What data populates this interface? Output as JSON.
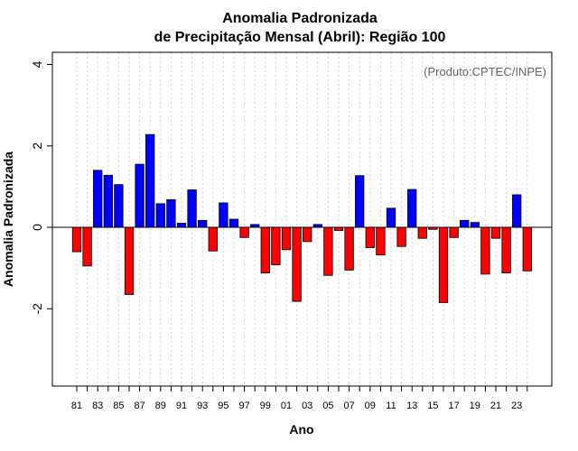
{
  "chart_data": {
    "type": "bar",
    "title_line1": "Anomalia Padronizada",
    "title_line2": "de Precipitação Mensal (Abril): Região 100",
    "watermark": "(Produto:CPTEC/INPE)",
    "xlabel": "Ano",
    "ylabel": "Anomalia Padronizada",
    "ylim": [
      -3.9,
      4.3
    ],
    "yticks": [
      -2,
      0,
      2,
      4
    ],
    "ytick_labels": [
      "-2",
      "0",
      "2",
      "4"
    ],
    "grid": "vertical dotted",
    "positive_color": "#0000ff",
    "negative_color": "#ff0000",
    "categories": [
      "81",
      "82",
      "83",
      "84",
      "85",
      "86",
      "87",
      "88",
      "89",
      "90",
      "91",
      "92",
      "93",
      "94",
      "95",
      "96",
      "97",
      "98",
      "99",
      "00",
      "01",
      "02",
      "03",
      "04",
      "05",
      "06",
      "07",
      "08",
      "09",
      "10",
      "11",
      "12",
      "13",
      "14",
      "15",
      "16",
      "17",
      "18",
      "19",
      "20",
      "21",
      "22",
      "23",
      "24"
    ],
    "xtick_labels": [
      "81",
      "",
      "83",
      "",
      "85",
      "",
      "87",
      "",
      "89",
      "",
      "91",
      "",
      "93",
      "",
      "95",
      "",
      "97",
      "",
      "99",
      "",
      "01",
      "",
      "03",
      "",
      "05",
      "",
      "07",
      "",
      "09",
      "",
      "11",
      "",
      "13",
      "",
      "15",
      "",
      "17",
      "",
      "19",
      "",
      "21",
      "",
      "23",
      ""
    ],
    "values": [
      -0.6,
      -0.95,
      1.4,
      1.28,
      1.05,
      -1.65,
      1.55,
      2.28,
      0.58,
      0.68,
      0.1,
      0.92,
      0.17,
      -0.58,
      0.6,
      0.2,
      -0.25,
      0.07,
      -1.12,
      -0.92,
      -0.55,
      -1.82,
      -0.35,
      0.07,
      -1.18,
      -0.08,
      -1.05,
      1.27,
      -0.5,
      -0.68,
      0.47,
      -0.47,
      0.93,
      -0.27,
      -0.05,
      -1.85,
      -0.25,
      0.17,
      0.12,
      -1.15,
      -0.27,
      -1.12,
      0.8,
      -1.07
    ]
  }
}
